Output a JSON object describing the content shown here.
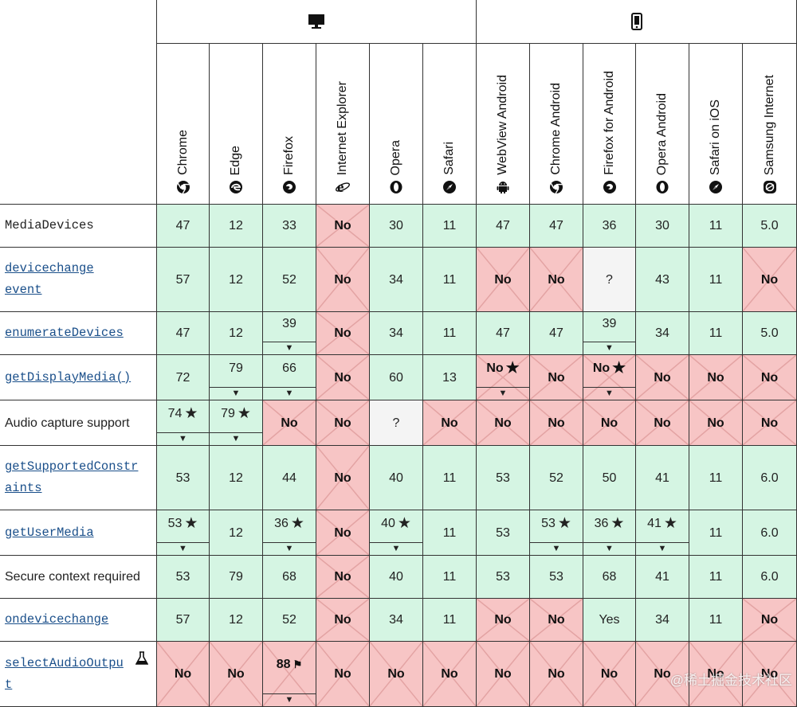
{
  "platforms": [
    {
      "name": "desktop-icon",
      "span": 6
    },
    {
      "name": "mobile-icon",
      "span": 6
    }
  ],
  "browsers": [
    {
      "name": "Chrome",
      "icon": "chrome-icon"
    },
    {
      "name": "Edge",
      "icon": "edge-icon"
    },
    {
      "name": "Firefox",
      "icon": "firefox-icon"
    },
    {
      "name": "Internet Explorer",
      "icon": "ie-icon"
    },
    {
      "name": "Opera",
      "icon": "opera-icon"
    },
    {
      "name": "Safari",
      "icon": "safari-icon"
    },
    {
      "name": "WebView Android",
      "icon": "android-icon"
    },
    {
      "name": "Chrome Android",
      "icon": "chrome-icon"
    },
    {
      "name": "Firefox for Android",
      "icon": "firefox-icon"
    },
    {
      "name": "Opera Android",
      "icon": "opera-icon"
    },
    {
      "name": "Safari on iOS",
      "icon": "safari-icon"
    },
    {
      "name": "Samsung Internet",
      "icon": "samsung-icon"
    }
  ],
  "rows": [
    {
      "lines": [
        "MediaDevices"
      ],
      "style": "code-plain",
      "cells": [
        {
          "v": "47",
          "s": "yes"
        },
        {
          "v": "12",
          "s": "yes"
        },
        {
          "v": "33",
          "s": "yes"
        },
        {
          "v": "No",
          "s": "no"
        },
        {
          "v": "30",
          "s": "yes"
        },
        {
          "v": "11",
          "s": "yes"
        },
        {
          "v": "47",
          "s": "yes"
        },
        {
          "v": "47",
          "s": "yes"
        },
        {
          "v": "36",
          "s": "yes"
        },
        {
          "v": "30",
          "s": "yes"
        },
        {
          "v": "11",
          "s": "yes"
        },
        {
          "v": "5.0",
          "s": "yes"
        }
      ]
    },
    {
      "lines": [
        "devicechange",
        "event"
      ],
      "style": "code",
      "cells": [
        {
          "v": "57",
          "s": "yes"
        },
        {
          "v": "12",
          "s": "yes"
        },
        {
          "v": "52",
          "s": "yes"
        },
        {
          "v": "No",
          "s": "no"
        },
        {
          "v": "34",
          "s": "yes"
        },
        {
          "v": "11",
          "s": "yes"
        },
        {
          "v": "No",
          "s": "no"
        },
        {
          "v": "No",
          "s": "no"
        },
        {
          "v": "?",
          "s": "unk"
        },
        {
          "v": "43",
          "s": "yes"
        },
        {
          "v": "11",
          "s": "yes"
        },
        {
          "v": "No",
          "s": "no"
        }
      ]
    },
    {
      "lines": [
        "enumerateDevices"
      ],
      "style": "code",
      "cells": [
        {
          "v": "47",
          "s": "yes"
        },
        {
          "v": "12",
          "s": "yes"
        },
        {
          "v": "39",
          "s": "yes",
          "m": "caret"
        },
        {
          "v": "No",
          "s": "no"
        },
        {
          "v": "34",
          "s": "yes"
        },
        {
          "v": "11",
          "s": "yes"
        },
        {
          "v": "47",
          "s": "yes"
        },
        {
          "v": "47",
          "s": "yes"
        },
        {
          "v": "39",
          "s": "yes",
          "m": "caret"
        },
        {
          "v": "34",
          "s": "yes"
        },
        {
          "v": "11",
          "s": "yes"
        },
        {
          "v": "5.0",
          "s": "yes"
        }
      ]
    },
    {
      "lines": [
        "getDisplayMedia()"
      ],
      "style": "code",
      "cells": [
        {
          "v": "72",
          "s": "yes"
        },
        {
          "v": "79",
          "s": "yes",
          "m": "caret"
        },
        {
          "v": "66",
          "s": "yes",
          "m": "caret"
        },
        {
          "v": "No",
          "s": "no"
        },
        {
          "v": "60",
          "s": "yes"
        },
        {
          "v": "13",
          "s": "yes"
        },
        {
          "v": "No",
          "s": "no",
          "m": "star-caret"
        },
        {
          "v": "No",
          "s": "no"
        },
        {
          "v": "No",
          "s": "no",
          "m": "star-caret"
        },
        {
          "v": "No",
          "s": "no"
        },
        {
          "v": "No",
          "s": "no"
        },
        {
          "v": "No",
          "s": "no"
        }
      ]
    },
    {
      "lines": [
        "Audio capture support"
      ],
      "style": "plain",
      "cells": [
        {
          "v": "74",
          "s": "yes",
          "m": "star-caret"
        },
        {
          "v": "79",
          "s": "yes",
          "m": "star-caret"
        },
        {
          "v": "No",
          "s": "no"
        },
        {
          "v": "No",
          "s": "no"
        },
        {
          "v": "?",
          "s": "unk"
        },
        {
          "v": "No",
          "s": "no"
        },
        {
          "v": "No",
          "s": "no"
        },
        {
          "v": "No",
          "s": "no"
        },
        {
          "v": "No",
          "s": "no"
        },
        {
          "v": "No",
          "s": "no"
        },
        {
          "v": "No",
          "s": "no"
        },
        {
          "v": "No",
          "s": "no"
        }
      ]
    },
    {
      "lines": [
        "getSupportedConstr",
        "aints"
      ],
      "style": "code",
      "cells": [
        {
          "v": "53",
          "s": "yes"
        },
        {
          "v": "12",
          "s": "yes"
        },
        {
          "v": "44",
          "s": "yes"
        },
        {
          "v": "No",
          "s": "no"
        },
        {
          "v": "40",
          "s": "yes"
        },
        {
          "v": "11",
          "s": "yes"
        },
        {
          "v": "53",
          "s": "yes"
        },
        {
          "v": "52",
          "s": "yes"
        },
        {
          "v": "50",
          "s": "yes"
        },
        {
          "v": "41",
          "s": "yes"
        },
        {
          "v": "11",
          "s": "yes"
        },
        {
          "v": "6.0",
          "s": "yes"
        }
      ]
    },
    {
      "lines": [
        "getUserMedia"
      ],
      "style": "code",
      "cells": [
        {
          "v": "53",
          "s": "yes",
          "m": "star-caret"
        },
        {
          "v": "12",
          "s": "yes"
        },
        {
          "v": "36",
          "s": "yes",
          "m": "star-caret"
        },
        {
          "v": "No",
          "s": "no"
        },
        {
          "v": "40",
          "s": "yes",
          "m": "star-caret"
        },
        {
          "v": "11",
          "s": "yes"
        },
        {
          "v": "53",
          "s": "yes"
        },
        {
          "v": "53",
          "s": "yes",
          "m": "star-caret"
        },
        {
          "v": "36",
          "s": "yes",
          "m": "star-caret"
        },
        {
          "v": "41",
          "s": "yes",
          "m": "star-caret"
        },
        {
          "v": "11",
          "s": "yes"
        },
        {
          "v": "6.0",
          "s": "yes"
        }
      ]
    },
    {
      "lines": [
        "Secure context required"
      ],
      "style": "plain",
      "cells": [
        {
          "v": "53",
          "s": "yes"
        },
        {
          "v": "79",
          "s": "yes"
        },
        {
          "v": "68",
          "s": "yes"
        },
        {
          "v": "No",
          "s": "no"
        },
        {
          "v": "40",
          "s": "yes"
        },
        {
          "v": "11",
          "s": "yes"
        },
        {
          "v": "53",
          "s": "yes"
        },
        {
          "v": "53",
          "s": "yes"
        },
        {
          "v": "68",
          "s": "yes"
        },
        {
          "v": "41",
          "s": "yes"
        },
        {
          "v": "11",
          "s": "yes"
        },
        {
          "v": "6.0",
          "s": "yes"
        }
      ]
    },
    {
      "lines": [
        "ondevicechange"
      ],
      "style": "code",
      "cells": [
        {
          "v": "57",
          "s": "yes"
        },
        {
          "v": "12",
          "s": "yes"
        },
        {
          "v": "52",
          "s": "yes"
        },
        {
          "v": "No",
          "s": "no"
        },
        {
          "v": "34",
          "s": "yes"
        },
        {
          "v": "11",
          "s": "yes"
        },
        {
          "v": "No",
          "s": "no"
        },
        {
          "v": "No",
          "s": "no"
        },
        {
          "v": "Yes",
          "s": "yes"
        },
        {
          "v": "34",
          "s": "yes"
        },
        {
          "v": "11",
          "s": "yes"
        },
        {
          "v": "No",
          "s": "no"
        }
      ]
    },
    {
      "lines": [
        "selectAudioOutpu",
        "t"
      ],
      "style": "code",
      "experimental": true,
      "cells": [
        {
          "v": "No",
          "s": "no"
        },
        {
          "v": "No",
          "s": "no"
        },
        {
          "v": "88",
          "s": "no",
          "m": "flag-caret"
        },
        {
          "v": "No",
          "s": "no"
        },
        {
          "v": "No",
          "s": "no"
        },
        {
          "v": "No",
          "s": "no"
        },
        {
          "v": "No",
          "s": "no"
        },
        {
          "v": "No",
          "s": "no"
        },
        {
          "v": "No",
          "s": "no"
        },
        {
          "v": "No",
          "s": "no"
        },
        {
          "v": "No",
          "s": "no"
        },
        {
          "v": "No",
          "s": "no"
        }
      ]
    }
  ],
  "watermark": "@稀土掘金技术社区",
  "colors": {
    "yes": "#d5f5e3",
    "no": "#f7c5c5",
    "unknown": "#f4f4f4",
    "border": "#333333"
  }
}
